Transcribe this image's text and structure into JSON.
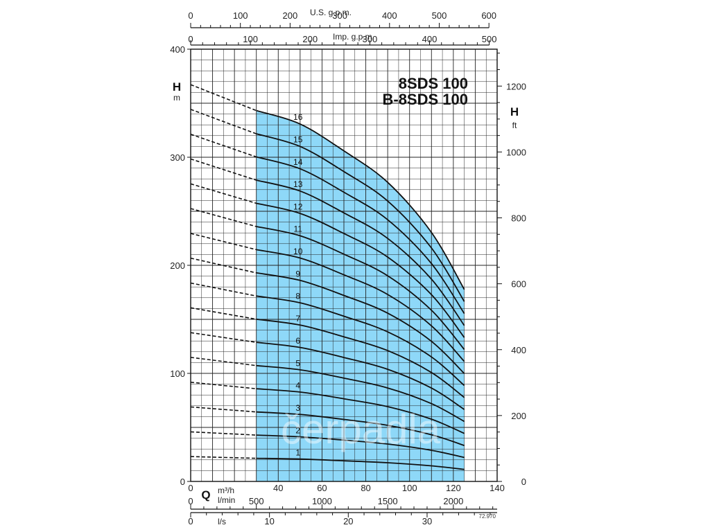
{
  "chart_data": {
    "type": "line",
    "title": "8SDS 100",
    "subtitle": "B-8SDS 100",
    "left_axis": {
      "label": "H",
      "unit": "m",
      "range": [
        0,
        400
      ],
      "ticks": [
        "0",
        "100",
        "200",
        "300",
        "400"
      ],
      "tick_values": [
        0,
        100,
        200,
        300,
        400
      ]
    },
    "right_axis": {
      "label": "H",
      "unit": "ft",
      "range": [
        0,
        1312
      ],
      "ticks": [
        "0",
        "200",
        "400",
        "600",
        "800",
        "1000",
        "1200"
      ],
      "tick_values": [
        0,
        200,
        400,
        600,
        800,
        1000,
        1200
      ]
    },
    "x_axis": {
      "label": "Q",
      "unit": "m³/h",
      "range": [
        0,
        140
      ],
      "ticks": [
        "0",
        "40",
        "60",
        "80",
        "100",
        "120",
        "140"
      ],
      "tick_values": [
        0,
        40,
        60,
        80,
        100,
        120,
        140
      ]
    },
    "x_axis_lmin": {
      "unit": "l/min",
      "ticks": [
        "0",
        "500",
        "1000",
        "1500",
        "2000"
      ],
      "tick_values": [
        0,
        500,
        1000,
        1500,
        2000
      ]
    },
    "x_axis_ls": {
      "unit": "l/s",
      "ticks": [
        "0",
        "10",
        "20",
        "30"
      ],
      "tick_values": [
        0,
        10,
        20,
        30
      ]
    },
    "top_axis_us": {
      "label": "U.S. g.p.m.",
      "ticks": [
        "0",
        "100",
        "200",
        "300",
        "400",
        "500",
        "600"
      ],
      "tick_values": [
        0,
        100,
        200,
        300,
        400,
        500,
        600
      ]
    },
    "top_axis_imp": {
      "label": "Imp. g.p.m.",
      "ticks": [
        "0",
        "100",
        "200",
        "300",
        "400",
        "500"
      ],
      "tick_values": [
        0,
        100,
        200,
        300,
        400,
        500
      ]
    },
    "operating_range": [
      30,
      125
    ],
    "grid": true,
    "code": "72.970",
    "series": [
      {
        "name": "1",
        "values": [
          [
            0,
            23.0
          ],
          [
            30,
            21.4
          ],
          [
            50,
            20.7
          ],
          [
            70,
            19.1
          ],
          [
            90,
            17.3
          ],
          [
            110,
            14.4
          ],
          [
            125,
            11.1
          ]
        ]
      },
      {
        "name": "2",
        "values": [
          [
            0,
            45.9
          ],
          [
            30,
            42.9
          ],
          [
            50,
            41.3
          ],
          [
            70,
            38.2
          ],
          [
            90,
            34.6
          ],
          [
            110,
            28.8
          ],
          [
            125,
            22.2
          ]
        ]
      },
      {
        "name": "3",
        "values": [
          [
            0,
            68.9
          ],
          [
            30,
            64.3
          ],
          [
            50,
            62.0
          ],
          [
            70,
            57.4
          ],
          [
            90,
            51.9
          ],
          [
            110,
            43.2
          ],
          [
            125,
            33.3
          ]
        ]
      },
      {
        "name": "4",
        "values": [
          [
            0,
            91.8
          ],
          [
            30,
            85.8
          ],
          [
            50,
            82.7
          ],
          [
            70,
            76.5
          ],
          [
            90,
            69.2
          ],
          [
            110,
            57.6
          ],
          [
            125,
            44.4
          ]
        ]
      },
      {
        "name": "5",
        "values": [
          [
            0,
            114.8
          ],
          [
            30,
            107.2
          ],
          [
            50,
            103.3
          ],
          [
            70,
            95.6
          ],
          [
            90,
            86.5
          ],
          [
            110,
            72.0
          ],
          [
            125,
            55.5
          ]
        ]
      },
      {
        "name": "6",
        "values": [
          [
            0,
            137.7
          ],
          [
            30,
            128.7
          ],
          [
            50,
            124.0
          ],
          [
            70,
            114.7
          ],
          [
            90,
            103.8
          ],
          [
            110,
            86.4
          ],
          [
            125,
            66.6
          ]
        ]
      },
      {
        "name": "7",
        "values": [
          [
            0,
            160.7
          ],
          [
            30,
            150.1
          ],
          [
            50,
            144.7
          ],
          [
            70,
            133.8
          ],
          [
            90,
            121.1
          ],
          [
            110,
            100.8
          ],
          [
            125,
            77.7
          ]
        ]
      },
      {
        "name": "8",
        "values": [
          [
            0,
            183.6
          ],
          [
            30,
            171.6
          ],
          [
            50,
            165.3
          ],
          [
            70,
            152.9
          ],
          [
            90,
            138.4
          ],
          [
            110,
            115.2
          ],
          [
            125,
            88.8
          ]
        ]
      },
      {
        "name": "9",
        "values": [
          [
            0,
            206.6
          ],
          [
            30,
            193.0
          ],
          [
            50,
            186.0
          ],
          [
            70,
            172.1
          ],
          [
            90,
            155.7
          ],
          [
            110,
            129.6
          ],
          [
            125,
            99.9
          ]
        ]
      },
      {
        "name": "10",
        "values": [
          [
            0,
            229.5
          ],
          [
            30,
            214.5
          ],
          [
            50,
            206.7
          ],
          [
            70,
            191.2
          ],
          [
            90,
            173.0
          ],
          [
            110,
            144.0
          ],
          [
            125,
            111.0
          ]
        ]
      },
      {
        "name": "11",
        "values": [
          [
            0,
            252.5
          ],
          [
            30,
            235.9
          ],
          [
            50,
            227.3
          ],
          [
            70,
            210.3
          ],
          [
            90,
            190.3
          ],
          [
            110,
            158.4
          ],
          [
            125,
            122.1
          ]
        ]
      },
      {
        "name": "12",
        "values": [
          [
            0,
            275.4
          ],
          [
            30,
            257.4
          ],
          [
            50,
            248.0
          ],
          [
            70,
            229.4
          ],
          [
            90,
            207.6
          ],
          [
            110,
            172.8
          ],
          [
            125,
            133.2
          ]
        ]
      },
      {
        "name": "13",
        "values": [
          [
            0,
            298.4
          ],
          [
            30,
            278.8
          ],
          [
            50,
            268.7
          ],
          [
            70,
            248.5
          ],
          [
            90,
            224.9
          ],
          [
            110,
            187.2
          ],
          [
            125,
            144.3
          ]
        ]
      },
      {
        "name": "14",
        "values": [
          [
            0,
            321.3
          ],
          [
            30,
            300.3
          ],
          [
            50,
            289.3
          ],
          [
            70,
            267.6
          ],
          [
            90,
            242.2
          ],
          [
            110,
            201.6
          ],
          [
            125,
            155.4
          ]
        ]
      },
      {
        "name": "15",
        "values": [
          [
            0,
            344.3
          ],
          [
            30,
            321.7
          ],
          [
            50,
            310.0
          ],
          [
            70,
            286.7
          ],
          [
            90,
            259.5
          ],
          [
            110,
            216.0
          ],
          [
            125,
            166.5
          ]
        ]
      },
      {
        "name": "16",
        "values": [
          [
            0,
            367.2
          ],
          [
            30,
            343.2
          ],
          [
            50,
            330.7
          ],
          [
            70,
            305.9
          ],
          [
            90,
            276.8
          ],
          [
            110,
            230.4
          ],
          [
            125,
            177.6
          ]
        ]
      }
    ]
  },
  "watermark": "čerpadla",
  "colors": {
    "operating_fill": "#8ed8f8",
    "grid": "#222222",
    "curve": "#111111"
  }
}
